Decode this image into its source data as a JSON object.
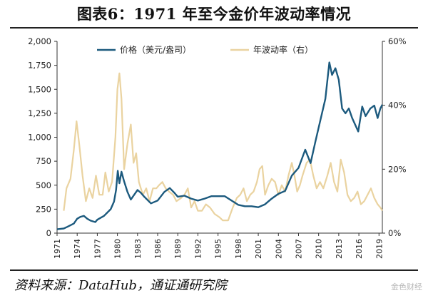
{
  "title": "图表6：1971 年至今金价年波动率情况",
  "source": "资料来源：DataHub，通证通研究院",
  "watermark": "金色财经",
  "colors": {
    "price": "#1c5a7e",
    "volatility": "#ead3a0",
    "axis": "#333333"
  },
  "chart_data": {
    "type": "line",
    "title": "1971 年至今金价年波动率情况",
    "x_start": 1971,
    "x_end": 2019.5,
    "x_ticks": [
      1971,
      1974,
      1977,
      1980,
      1983,
      1986,
      1989,
      1992,
      1995,
      1998,
      2001,
      2004,
      2007,
      2010,
      2013,
      2016,
      2019
    ],
    "y_left": {
      "min": 0,
      "max": 2000,
      "ticks": [
        0,
        250,
        500,
        750,
        "1,000",
        "1,250",
        "1,500",
        "1,750",
        "2,000"
      ]
    },
    "y_right": {
      "min": 0,
      "max": 60,
      "ticks": [
        "0%",
        "20%",
        "40%",
        "60%"
      ]
    },
    "series": [
      {
        "name": "价格（美元/盎司）",
        "axis": "left",
        "color": "#1c5a7e",
        "points": [
          [
            1971.0,
            40
          ],
          [
            1972.0,
            48
          ],
          [
            1972.5,
            65
          ],
          [
            1973.5,
            100
          ],
          [
            1974.0,
            150
          ],
          [
            1974.5,
            170
          ],
          [
            1975.0,
            180
          ],
          [
            1975.5,
            150
          ],
          [
            1976.0,
            130
          ],
          [
            1976.7,
            115
          ],
          [
            1977.0,
            140
          ],
          [
            1978.0,
            180
          ],
          [
            1979.0,
            250
          ],
          [
            1979.5,
            330
          ],
          [
            1979.8,
            450
          ],
          [
            1980.05,
            650
          ],
          [
            1980.3,
            520
          ],
          [
            1980.6,
            640
          ],
          [
            1981.0,
            540
          ],
          [
            1981.5,
            430
          ],
          [
            1982.0,
            350
          ],
          [
            1982.5,
            400
          ],
          [
            1983.0,
            450
          ],
          [
            1983.5,
            420
          ],
          [
            1984.0,
            380
          ],
          [
            1985.0,
            310
          ],
          [
            1986.0,
            340
          ],
          [
            1987.0,
            430
          ],
          [
            1987.8,
            470
          ],
          [
            1988.5,
            420
          ],
          [
            1989.0,
            380
          ],
          [
            1990.0,
            390
          ],
          [
            1991.0,
            360
          ],
          [
            1992.0,
            340
          ],
          [
            1993.0,
            360
          ],
          [
            1994.0,
            385
          ],
          [
            1995.0,
            385
          ],
          [
            1996.0,
            385
          ],
          [
            1997.0,
            340
          ],
          [
            1998.0,
            295
          ],
          [
            1999.0,
            280
          ],
          [
            2000.0,
            280
          ],
          [
            2001.0,
            270
          ],
          [
            2002.0,
            300
          ],
          [
            2003.0,
            360
          ],
          [
            2004.0,
            410
          ],
          [
            2005.0,
            440
          ],
          [
            2006.0,
            600
          ],
          [
            2007.0,
            680
          ],
          [
            2008.0,
            870
          ],
          [
            2008.8,
            730
          ],
          [
            2009.5,
            950
          ],
          [
            2010.0,
            1100
          ],
          [
            2010.5,
            1250
          ],
          [
            2011.0,
            1400
          ],
          [
            2011.6,
            1780
          ],
          [
            2012.0,
            1650
          ],
          [
            2012.5,
            1720
          ],
          [
            2013.0,
            1600
          ],
          [
            2013.5,
            1300
          ],
          [
            2014.0,
            1250
          ],
          [
            2014.5,
            1300
          ],
          [
            2015.0,
            1200
          ],
          [
            2015.9,
            1060
          ],
          [
            2016.5,
            1320
          ],
          [
            2017.0,
            1220
          ],
          [
            2017.7,
            1300
          ],
          [
            2018.3,
            1330
          ],
          [
            2018.8,
            1200
          ],
          [
            2019.2,
            1300
          ],
          [
            2019.5,
            1340
          ]
        ]
      },
      {
        "name": "年波动率（右）",
        "axis": "right",
        "color": "#ead3a0",
        "points": [
          [
            1972.0,
            7
          ],
          [
            1972.4,
            14
          ],
          [
            1973.0,
            17
          ],
          [
            1973.5,
            26
          ],
          [
            1973.9,
            35
          ],
          [
            1974.3,
            28
          ],
          [
            1974.8,
            18
          ],
          [
            1975.3,
            10
          ],
          [
            1975.8,
            14
          ],
          [
            1976.3,
            11
          ],
          [
            1976.8,
            18
          ],
          [
            1977.3,
            12
          ],
          [
            1977.8,
            12
          ],
          [
            1978.2,
            19
          ],
          [
            1978.7,
            13
          ],
          [
            1979.2,
            16
          ],
          [
            1979.7,
            30
          ],
          [
            1980.0,
            45
          ],
          [
            1980.3,
            50
          ],
          [
            1980.6,
            42
          ],
          [
            1981.0,
            20
          ],
          [
            1981.5,
            28
          ],
          [
            1982.0,
            34
          ],
          [
            1982.4,
            22
          ],
          [
            1982.8,
            25
          ],
          [
            1983.2,
            16
          ],
          [
            1983.8,
            12
          ],
          [
            1984.3,
            14
          ],
          [
            1984.8,
            10
          ],
          [
            1985.3,
            14
          ],
          [
            1985.8,
            14
          ],
          [
            1986.2,
            15
          ],
          [
            1986.7,
            16
          ],
          [
            1987.2,
            14
          ],
          [
            1987.7,
            13
          ],
          [
            1988.3,
            12
          ],
          [
            1988.8,
            10
          ],
          [
            1989.5,
            11
          ],
          [
            1990.0,
            12
          ],
          [
            1990.5,
            14
          ],
          [
            1991.0,
            8
          ],
          [
            1991.5,
            10
          ],
          [
            1992.0,
            7
          ],
          [
            1992.6,
            7
          ],
          [
            1993.2,
            9
          ],
          [
            1993.8,
            8
          ],
          [
            1994.5,
            6
          ],
          [
            1995.2,
            5
          ],
          [
            1995.7,
            4
          ],
          [
            1996.5,
            4
          ],
          [
            1997.2,
            8
          ],
          [
            1997.8,
            11
          ],
          [
            1998.3,
            12
          ],
          [
            1998.8,
            14
          ],
          [
            1999.3,
            10
          ],
          [
            1999.8,
            12
          ],
          [
            2000.3,
            13
          ],
          [
            2000.8,
            16
          ],
          [
            2001.2,
            20
          ],
          [
            2001.6,
            21
          ],
          [
            2002.0,
            12
          ],
          [
            2002.5,
            15
          ],
          [
            2003.0,
            17
          ],
          [
            2003.5,
            16
          ],
          [
            2004.0,
            12
          ],
          [
            2004.5,
            15
          ],
          [
            2005.0,
            13
          ],
          [
            2005.5,
            18
          ],
          [
            2006.0,
            22
          ],
          [
            2006.4,
            18
          ],
          [
            2006.8,
            13
          ],
          [
            2007.2,
            15
          ],
          [
            2007.6,
            18
          ],
          [
            2008.2,
            22
          ],
          [
            2008.7,
            23
          ],
          [
            2009.2,
            18
          ],
          [
            2009.7,
            14
          ],
          [
            2010.2,
            16
          ],
          [
            2010.7,
            14
          ],
          [
            2011.3,
            18
          ],
          [
            2011.8,
            22
          ],
          [
            2012.3,
            16
          ],
          [
            2012.8,
            13
          ],
          [
            2013.3,
            23
          ],
          [
            2013.8,
            19
          ],
          [
            2014.3,
            12
          ],
          [
            2014.8,
            10
          ],
          [
            2015.3,
            11
          ],
          [
            2015.8,
            13
          ],
          [
            2016.3,
            9
          ],
          [
            2016.8,
            10
          ],
          [
            2017.3,
            12
          ],
          [
            2017.8,
            14
          ],
          [
            2018.3,
            11
          ],
          [
            2018.8,
            9
          ],
          [
            2019.2,
            8
          ],
          [
            2019.5,
            7
          ]
        ]
      }
    ],
    "legend": [
      {
        "label": "价格（美元/盎司）",
        "color": "#1c5a7e"
      },
      {
        "label": "年波动率（右）",
        "color": "#ead3a0"
      }
    ]
  }
}
